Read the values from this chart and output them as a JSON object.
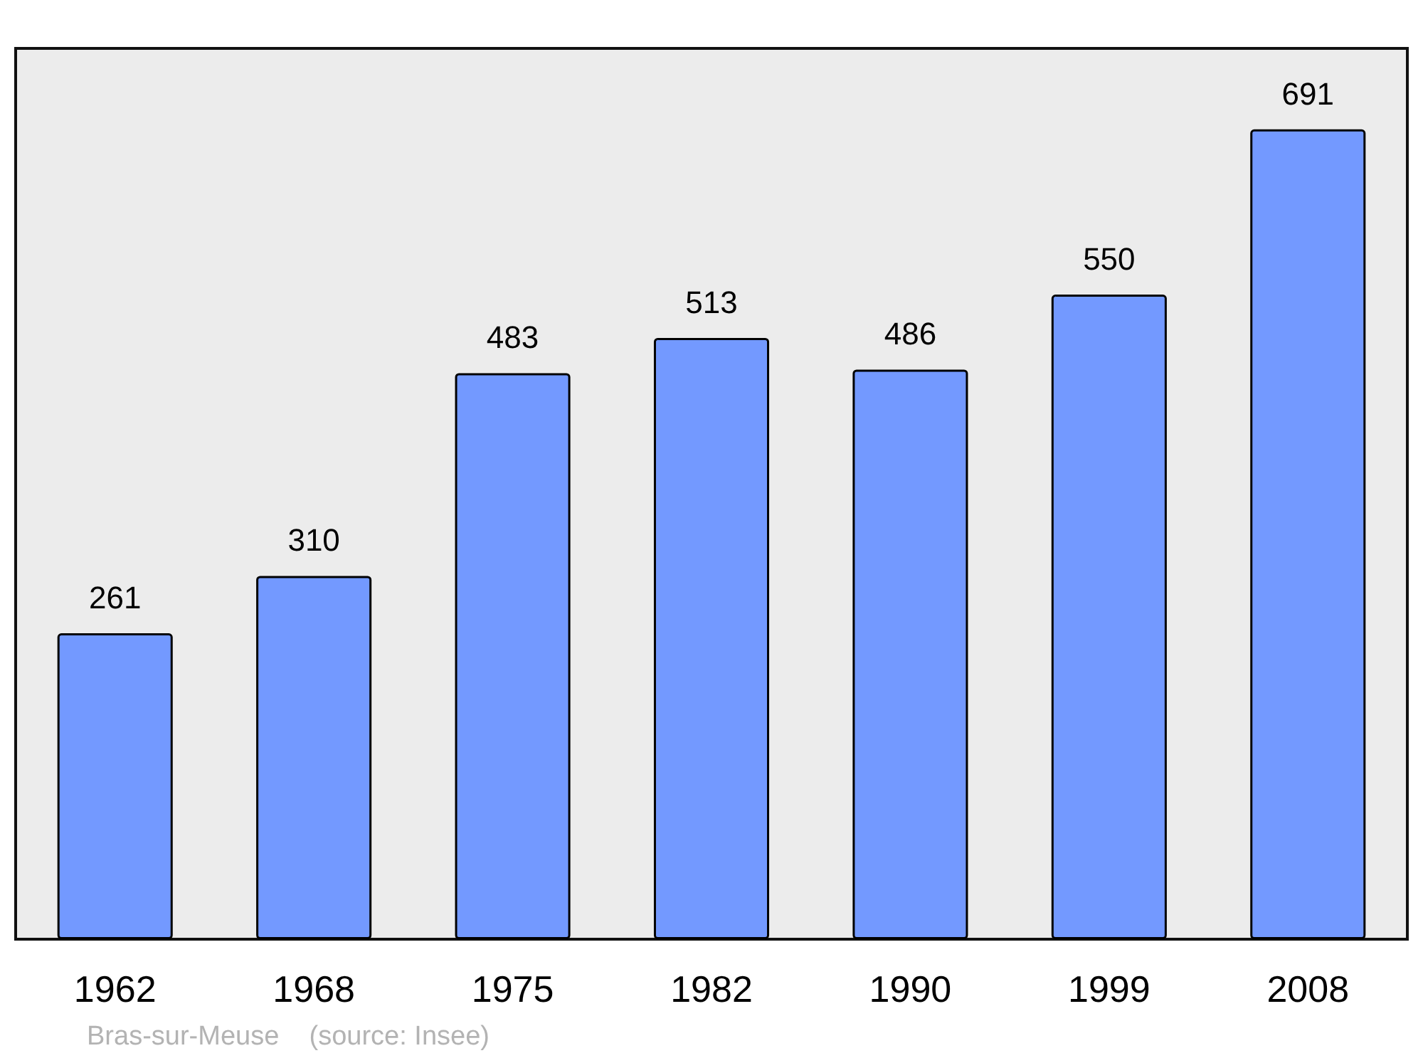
{
  "chart_data": {
    "type": "bar",
    "title": "Bras-sur-Meuse",
    "annotations": [
      "(source: Insee)"
    ],
    "categories": [
      "1962",
      "1968",
      "1975",
      "1982",
      "1990",
      "1999",
      "2008"
    ],
    "values": [
      261,
      310,
      483,
      513,
      486,
      550,
      691
    ],
    "color": "#7399ff",
    "data_labels": true
  }
}
